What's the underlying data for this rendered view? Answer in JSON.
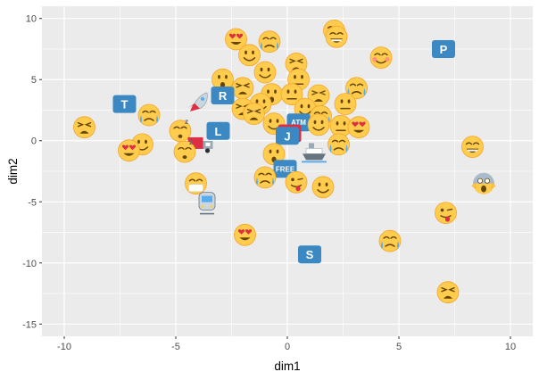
{
  "chart_data": {
    "type": "scatter",
    "title": "",
    "xlabel": "dim1",
    "ylabel": "dim2",
    "xlim": [
      -11,
      11
    ],
    "ylim": [
      -16,
      11
    ],
    "x_ticks": [
      -10,
      -5,
      0,
      5,
      10
    ],
    "y_ticks": [
      -15,
      -10,
      -5,
      0,
      5,
      10
    ],
    "x_tick_labels": [
      "-10",
      "-5",
      "0",
      "5",
      "10"
    ],
    "y_tick_labels": [
      "-15",
      "-10",
      "-5",
      "0",
      "5",
      "10"
    ],
    "grid": true,
    "legend": "none",
    "colors": {
      "panel": "#ebebeb",
      "grid": "#ffffff",
      "axis_text": "#4d4d4d",
      "axis_title": "#000000",
      "emoji_face": "#FFCC4D",
      "emoji_outline": "#F4A52C",
      "emoji_feature": "#664500",
      "badge_blue": "#3B88C3",
      "heart_red": "#DD2E44",
      "tear_blue": "#5DADEC"
    },
    "points": [
      {
        "x": 2.1,
        "y": 9.0,
        "icon": "grinning-face"
      },
      {
        "x": 2.2,
        "y": 8.5,
        "icon": "grinning-face"
      },
      {
        "x": -2.3,
        "y": 8.3,
        "icon": "heart-eyes-face"
      },
      {
        "x": -0.8,
        "y": 8.1,
        "icon": "crying-face"
      },
      {
        "x": -1.7,
        "y": 7.0,
        "icon": "smiling-face"
      },
      {
        "x": 4.2,
        "y": 6.8,
        "icon": "blushing-face"
      },
      {
        "x": 7.0,
        "y": 7.5,
        "icon": "badge",
        "label": "P"
      },
      {
        "x": 0.4,
        "y": 6.3,
        "icon": "tired-face"
      },
      {
        "x": -1.0,
        "y": 5.6,
        "icon": "smiling-face"
      },
      {
        "x": 0.5,
        "y": 5.0,
        "icon": "neutral-face"
      },
      {
        "x": -2.9,
        "y": 5.0,
        "icon": "surprised-face"
      },
      {
        "x": 3.1,
        "y": 4.3,
        "icon": "crying-face"
      },
      {
        "x": -2.0,
        "y": 4.3,
        "icon": "tired-face"
      },
      {
        "x": -2.9,
        "y": 3.7,
        "icon": "badge",
        "label": "R"
      },
      {
        "x": -4.0,
        "y": 3.2,
        "icon": "rocket"
      },
      {
        "x": -0.7,
        "y": 3.8,
        "icon": "surprised-face"
      },
      {
        "x": 0.2,
        "y": 3.8,
        "icon": "neutral-face"
      },
      {
        "x": 1.4,
        "y": 3.7,
        "icon": "tired-face"
      },
      {
        "x": -1.2,
        "y": 3.0,
        "icon": "smiling-face"
      },
      {
        "x": 2.6,
        "y": 3.0,
        "icon": "neutral-face"
      },
      {
        "x": -2.0,
        "y": 2.6,
        "icon": "tired-face"
      },
      {
        "x": -1.5,
        "y": 2.2,
        "icon": "tired-face"
      },
      {
        "x": 0.8,
        "y": 2.6,
        "icon": "smiling-face"
      },
      {
        "x": 1.5,
        "y": 2.0,
        "icon": "crying-face"
      },
      {
        "x": -7.3,
        "y": 3.0,
        "icon": "badge",
        "label": "T"
      },
      {
        "x": -6.2,
        "y": 2.1,
        "icon": "crying-face"
      },
      {
        "x": -9.1,
        "y": 1.1,
        "icon": "tired-face"
      },
      {
        "x": -0.6,
        "y": 1.4,
        "icon": "smiling-face"
      },
      {
        "x": 0.5,
        "y": 1.5,
        "icon": "badge",
        "label": "ATM"
      },
      {
        "x": 1.4,
        "y": 1.3,
        "icon": "smiling-face"
      },
      {
        "x": 2.4,
        "y": 1.2,
        "icon": "neutral-face"
      },
      {
        "x": 3.2,
        "y": 1.1,
        "icon": "heart-eyes-face"
      },
      {
        "x": -4.8,
        "y": 0.8,
        "icon": "sleeping-face"
      },
      {
        "x": -3.1,
        "y": 0.8,
        "icon": "badge",
        "label": "L"
      },
      {
        "x": 0.1,
        "y": 0.6,
        "icon": "sos-badge"
      },
      {
        "x": -6.5,
        "y": -0.3,
        "icon": "smiling-face"
      },
      {
        "x": -7.1,
        "y": -0.8,
        "icon": "heart-eyes-face"
      },
      {
        "x": -3.9,
        "y": -0.3,
        "icon": "truck"
      },
      {
        "x": -4.6,
        "y": -0.9,
        "icon": "sleeping-face"
      },
      {
        "x": 0.0,
        "y": 0.4,
        "icon": "badge",
        "label": "J"
      },
      {
        "x": 2.3,
        "y": -0.3,
        "icon": "crying-face"
      },
      {
        "x": -0.6,
        "y": -1.1,
        "icon": "surprised-face"
      },
      {
        "x": 1.2,
        "y": -1.0,
        "icon": "ship"
      },
      {
        "x": 8.3,
        "y": -0.5,
        "icon": "grinning-face"
      },
      {
        "x": -0.1,
        "y": -2.3,
        "icon": "badge",
        "label": "FREE"
      },
      {
        "x": -1.0,
        "y": -3.0,
        "icon": "crying-face"
      },
      {
        "x": 0.4,
        "y": -3.4,
        "icon": "tongue-face"
      },
      {
        "x": 1.6,
        "y": -3.8,
        "icon": "smiling-face"
      },
      {
        "x": -4.1,
        "y": -3.5,
        "icon": "mask-face"
      },
      {
        "x": 8.8,
        "y": -3.5,
        "icon": "screaming-face"
      },
      {
        "x": -3.6,
        "y": -5.1,
        "icon": "train"
      },
      {
        "x": 7.1,
        "y": -5.9,
        "icon": "tongue-face"
      },
      {
        "x": -1.9,
        "y": -7.7,
        "icon": "heart-eyes-face"
      },
      {
        "x": 4.6,
        "y": -8.2,
        "icon": "crying-face"
      },
      {
        "x": 1.0,
        "y": -9.3,
        "icon": "badge",
        "label": "S"
      },
      {
        "x": 7.2,
        "y": -12.4,
        "icon": "tired-face"
      }
    ]
  }
}
